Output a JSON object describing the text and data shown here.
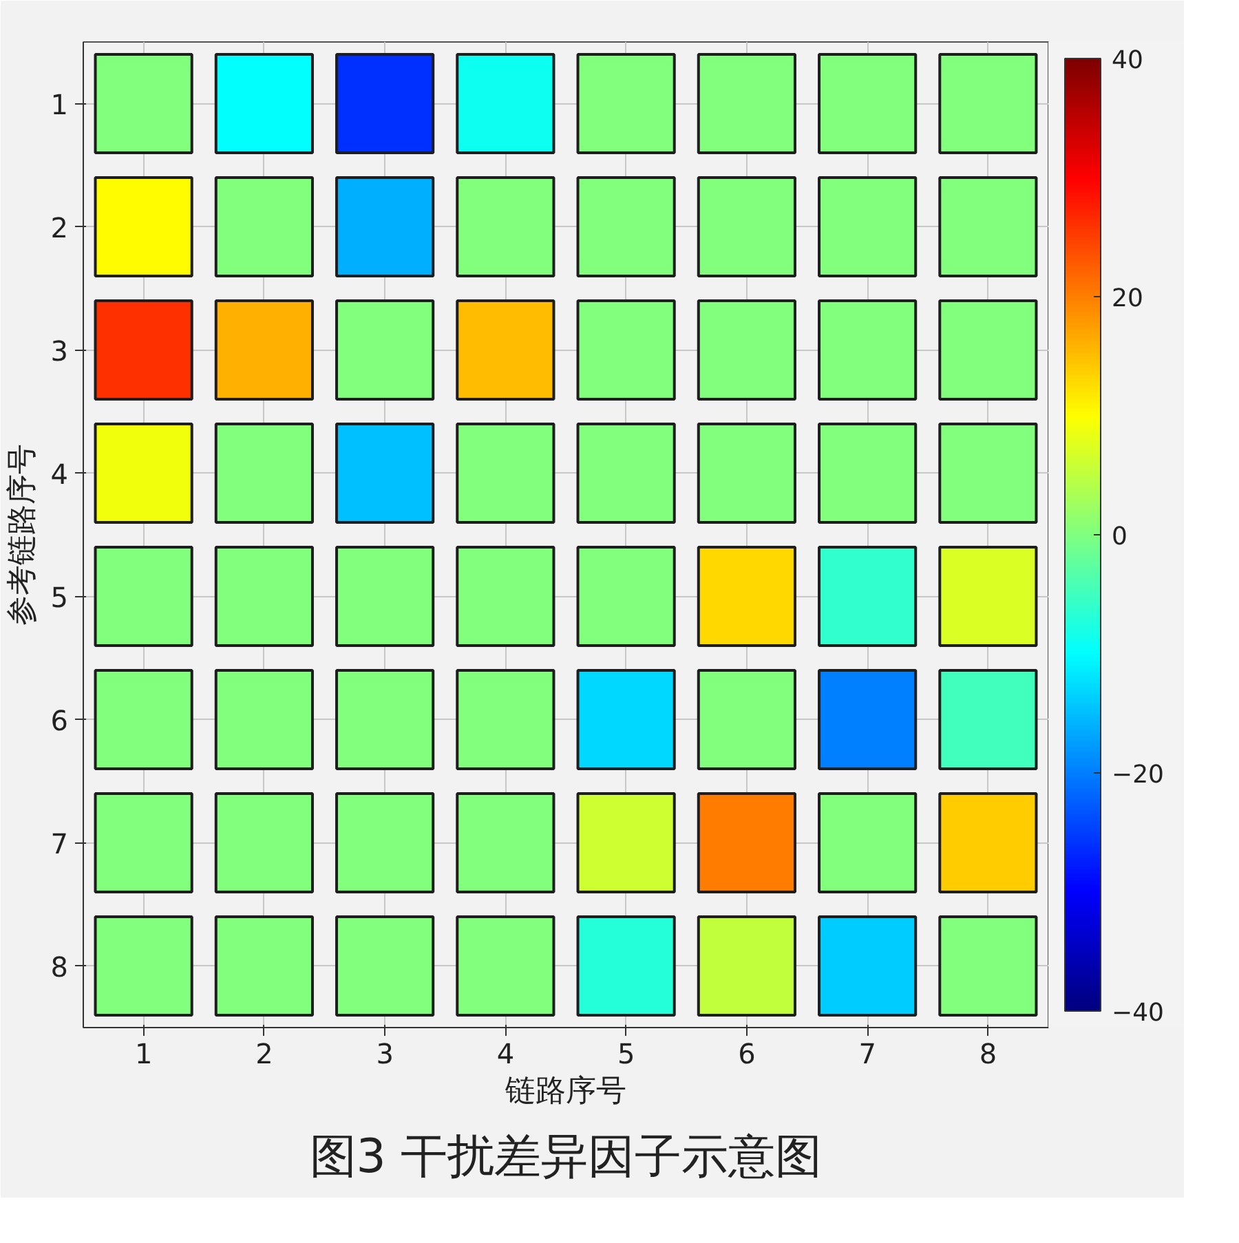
{
  "chart_data": {
    "type": "heatmap",
    "title": "图3 干扰差异因子示意图",
    "xlabel": "链路序号",
    "ylabel": "参考链路序号",
    "categories": [
      "1",
      "2",
      "3",
      "4",
      "5",
      "6",
      "7",
      "8"
    ],
    "y_categories": [
      "1",
      "2",
      "3",
      "4",
      "5",
      "6",
      "7",
      "8"
    ],
    "cells": [
      [
        0,
        -10,
        -26,
        -9,
        0,
        0,
        0,
        0
      ],
      [
        10,
        0,
        -16,
        0,
        0,
        0,
        0,
        0
      ],
      [
        26,
        16,
        0,
        15,
        0,
        0,
        0,
        0
      ],
      [
        9,
        0,
        -15,
        0,
        0,
        0,
        0,
        0
      ],
      [
        0,
        0,
        0,
        0,
        0,
        13,
        -6,
        7
      ],
      [
        0,
        0,
        0,
        0,
        -13,
        0,
        -20,
        -5
      ],
      [
        0,
        0,
        0,
        0,
        6,
        20,
        0,
        14
      ],
      [
        0,
        0,
        0,
        0,
        -7,
        5,
        -14,
        0
      ]
    ],
    "clim": [
      -40,
      40
    ],
    "cticks": [
      -40,
      -20,
      0,
      20,
      40
    ],
    "grid": true
  }
}
